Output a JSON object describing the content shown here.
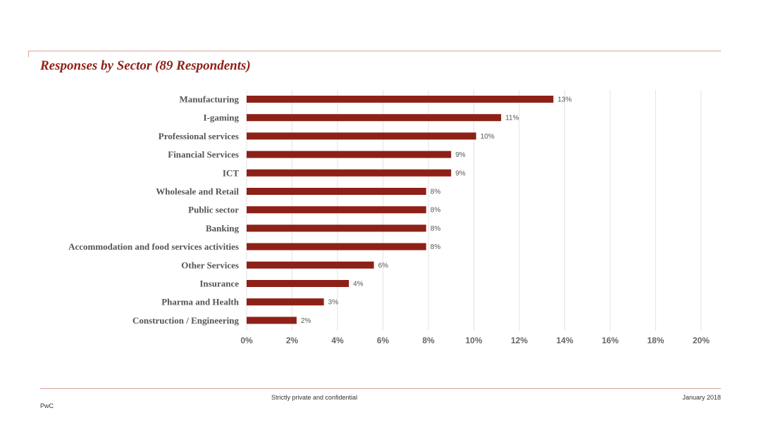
{
  "title": "Responses by Sector (89 Respondents)",
  "footer": {
    "confidential": "Strictly private and confidential",
    "date": "January 2018",
    "brand": "PwC"
  },
  "colors": {
    "bar": "#8e2117",
    "accent": "#8e2117",
    "rule": "#d9a097",
    "grid": "#e3e3e3"
  },
  "chart_data": {
    "type": "bar",
    "orientation": "horizontal",
    "categories": [
      "Manufacturing",
      "I-gaming",
      "Professional services",
      "Financial Services",
      "ICT",
      "Wholesale and Retail",
      "Public sector",
      "Banking",
      "Accommodation and food services activities",
      "Other Services",
      "Insurance",
      "Pharma and Health",
      "Construction / Engineering"
    ],
    "values": [
      13.5,
      11.2,
      10.1,
      9.0,
      9.0,
      7.9,
      7.9,
      7.9,
      7.9,
      5.6,
      4.5,
      3.4,
      2.2
    ],
    "data_labels": [
      "13%",
      "11%",
      "10%",
      "9%",
      "9%",
      "8%",
      "8%",
      "8%",
      "8%",
      "6%",
      "4%",
      "3%",
      "2%"
    ],
    "xlim": [
      0,
      20
    ],
    "xticks": [
      "0%",
      "2%",
      "4%",
      "6%",
      "8%",
      "10%",
      "12%",
      "14%",
      "16%",
      "18%",
      "20%"
    ],
    "grid": "vertical",
    "legend": "none"
  }
}
